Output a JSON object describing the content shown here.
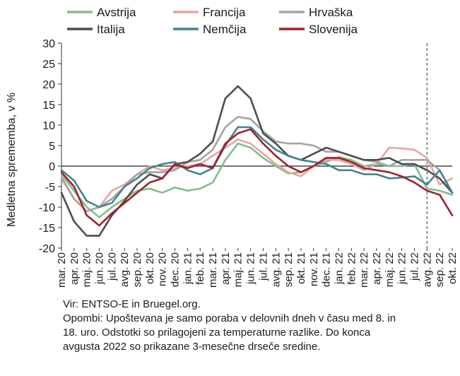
{
  "chart_data": {
    "type": "line",
    "ylabel": "Medletna sprememba, v %",
    "xlabel": "",
    "ylim": [
      -20,
      30
    ],
    "yticks": [
      -20,
      -15,
      -10,
      -5,
      0,
      5,
      10,
      15,
      20,
      25,
      30
    ],
    "categories": [
      "mar. 20",
      "apr. 20",
      "maj. 20",
      "jun. 20",
      "jul. 20",
      "avg. 20",
      "sep. 20",
      "okt. 20",
      "nov. 20",
      "dec. 20",
      "jan. 21",
      "feb. 21",
      "mar. 21",
      "apr. 21",
      "maj. 21",
      "jun. 21",
      "jul. 21",
      "avg. 21",
      "sep. 21",
      "okt. 21",
      "nov. 21",
      "dec. 21",
      "jan. 22",
      "feb. 22",
      "mar. 22",
      "apr. 22",
      "maj. 22",
      "jun. 22",
      "jul. 22",
      "avg. 22",
      "sep. 22",
      "okt. 22"
    ],
    "legend_position": "top",
    "vline_category": "avg. 22",
    "series": [
      {
        "name": "Avstrija",
        "color": "#7fbf8a",
        "values": [
          -2,
          -6,
          -10,
          -12.5,
          -10,
          -8,
          -6,
          -5.5,
          -6.5,
          -5.2,
          -6,
          -5.5,
          -4,
          1.5,
          5.5,
          4.5,
          2,
          0,
          -1.8,
          -1.5,
          0,
          1,
          2.2,
          1.5,
          0,
          0.5,
          0,
          0,
          0.5,
          -5.5,
          -6,
          -7
        ]
      },
      {
        "name": "Francija",
        "color": "#e8a5a0",
        "values": [
          -2.5,
          -8,
          -11,
          -10,
          -6,
          -4.5,
          -2,
          0,
          -1,
          -0.5,
          0,
          0.5,
          2.5,
          4.5,
          6.5,
          5.5,
          3,
          0.5,
          -1.5,
          -2.5,
          0,
          1.5,
          1.5,
          0.5,
          -1,
          0.5,
          4.5,
          4.3,
          4,
          2,
          -4.5,
          -3
        ]
      },
      {
        "name": "Hrvaška",
        "color": "#a3a3a3",
        "values": [
          -3,
          -8,
          -11,
          -10,
          -8,
          -5,
          -2,
          -1.5,
          -1.5,
          -1,
          1,
          1.5,
          4,
          9.5,
          12,
          11.5,
          8.5,
          6,
          5.5,
          5.5,
          5,
          3.5,
          3.5,
          2.5,
          1.5,
          1,
          0,
          1.5,
          1.5,
          1.5,
          -1,
          -6.5
        ]
      },
      {
        "name": "Italija",
        "color": "#4d4d4d",
        "values": [
          -6.5,
          -13.5,
          -17,
          -17,
          -12,
          -8.5,
          -4.5,
          -2,
          -3,
          0.5,
          1,
          3,
          6,
          16.5,
          19.5,
          16.5,
          8,
          5.5,
          2.5,
          1.5,
          3,
          4.5,
          3.5,
          2.5,
          1.5,
          1.5,
          2,
          0.5,
          0.5,
          -1,
          -3,
          -6.5
        ]
      },
      {
        "name": "Nemčija",
        "color": "#3e8590",
        "values": [
          -1,
          -3.5,
          -8.5,
          -10,
          -9,
          -5,
          -3,
          -0.5,
          0.5,
          1,
          -1,
          -2,
          -0.5,
          5,
          9.5,
          9.5,
          6.5,
          4,
          2.5,
          1.5,
          1,
          0.5,
          -1,
          -1,
          -2,
          -2,
          -3,
          -2.8,
          -2.5,
          -4.5,
          -1,
          -6.5
        ]
      },
      {
        "name": "Slovenija",
        "color": "#a01f2c",
        "values": [
          -1.5,
          -5,
          -12,
          -14.5,
          -11.5,
          -9,
          -6.5,
          -4,
          -3,
          0.5,
          -0.5,
          0.5,
          -0.5,
          5.5,
          8,
          9,
          5.5,
          2.5,
          0,
          -1.5,
          0,
          2,
          2,
          1,
          -0.5,
          -1,
          -1.5,
          -2.5,
          -4,
          -6,
          -7,
          -12
        ]
      }
    ]
  },
  "footer": {
    "source": "Vir: ENTSO-E in Bruegel.org.",
    "note_line1": "Opombi: Upoštevana je samo poraba v delovnih dneh v času med 8. in",
    "note_line2": "18. uro. Odstotki so prilagojeni za temperaturne razlike. Do konca",
    "note_line3": "avgusta 2022 so prikazane 3-mesečne drseče sredine."
  }
}
